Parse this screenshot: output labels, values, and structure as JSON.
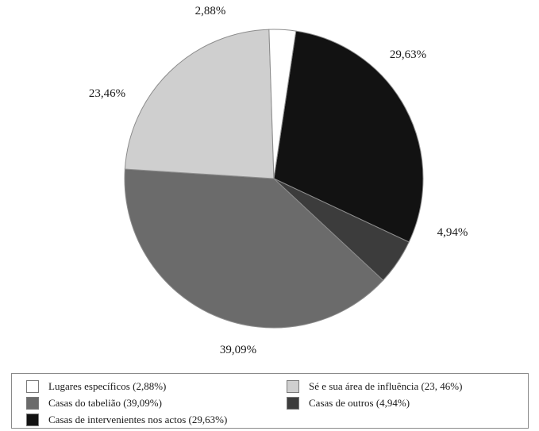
{
  "chart_data": {
    "type": "pie",
    "slices": [
      {
        "label": "Casas de intervenientes nos actos (29,63%)",
        "value": 29.63,
        "display": "29,63%",
        "color": "#121212"
      },
      {
        "label": "Casas de outros (4,94%)",
        "value": 4.94,
        "display": "4,94%",
        "color": "#3c3c3c"
      },
      {
        "label": "Casas do tabelião (39,09%)",
        "value": 39.09,
        "display": "39,09%",
        "color": "#6b6b6b"
      },
      {
        "label": "Sé e sua área de influência (23, 46%)",
        "value": 23.46,
        "display": "23,46%",
        "color": "#cfcfcf"
      },
      {
        "label": "Lugares específicos (2,88%)",
        "value": 2.88,
        "display": "2,88%",
        "color": "#ffffff"
      }
    ],
    "legend": [
      {
        "label": "Lugares específicos (2,88%)",
        "color": "#ffffff"
      },
      {
        "label": "Sé e sua área de influência (23, 46%)",
        "color": "#cfcfcf"
      },
      {
        "label": "Casas do tabelião (39,09%)",
        "color": "#6b6b6b"
      },
      {
        "label": "Casas de outros (4,94%)",
        "color": "#3c3c3c"
      },
      {
        "label": "Casas de intervenientes nos actos (29,63%)",
        "color": "#121212"
      }
    ],
    "legend_placement": "bottom"
  }
}
